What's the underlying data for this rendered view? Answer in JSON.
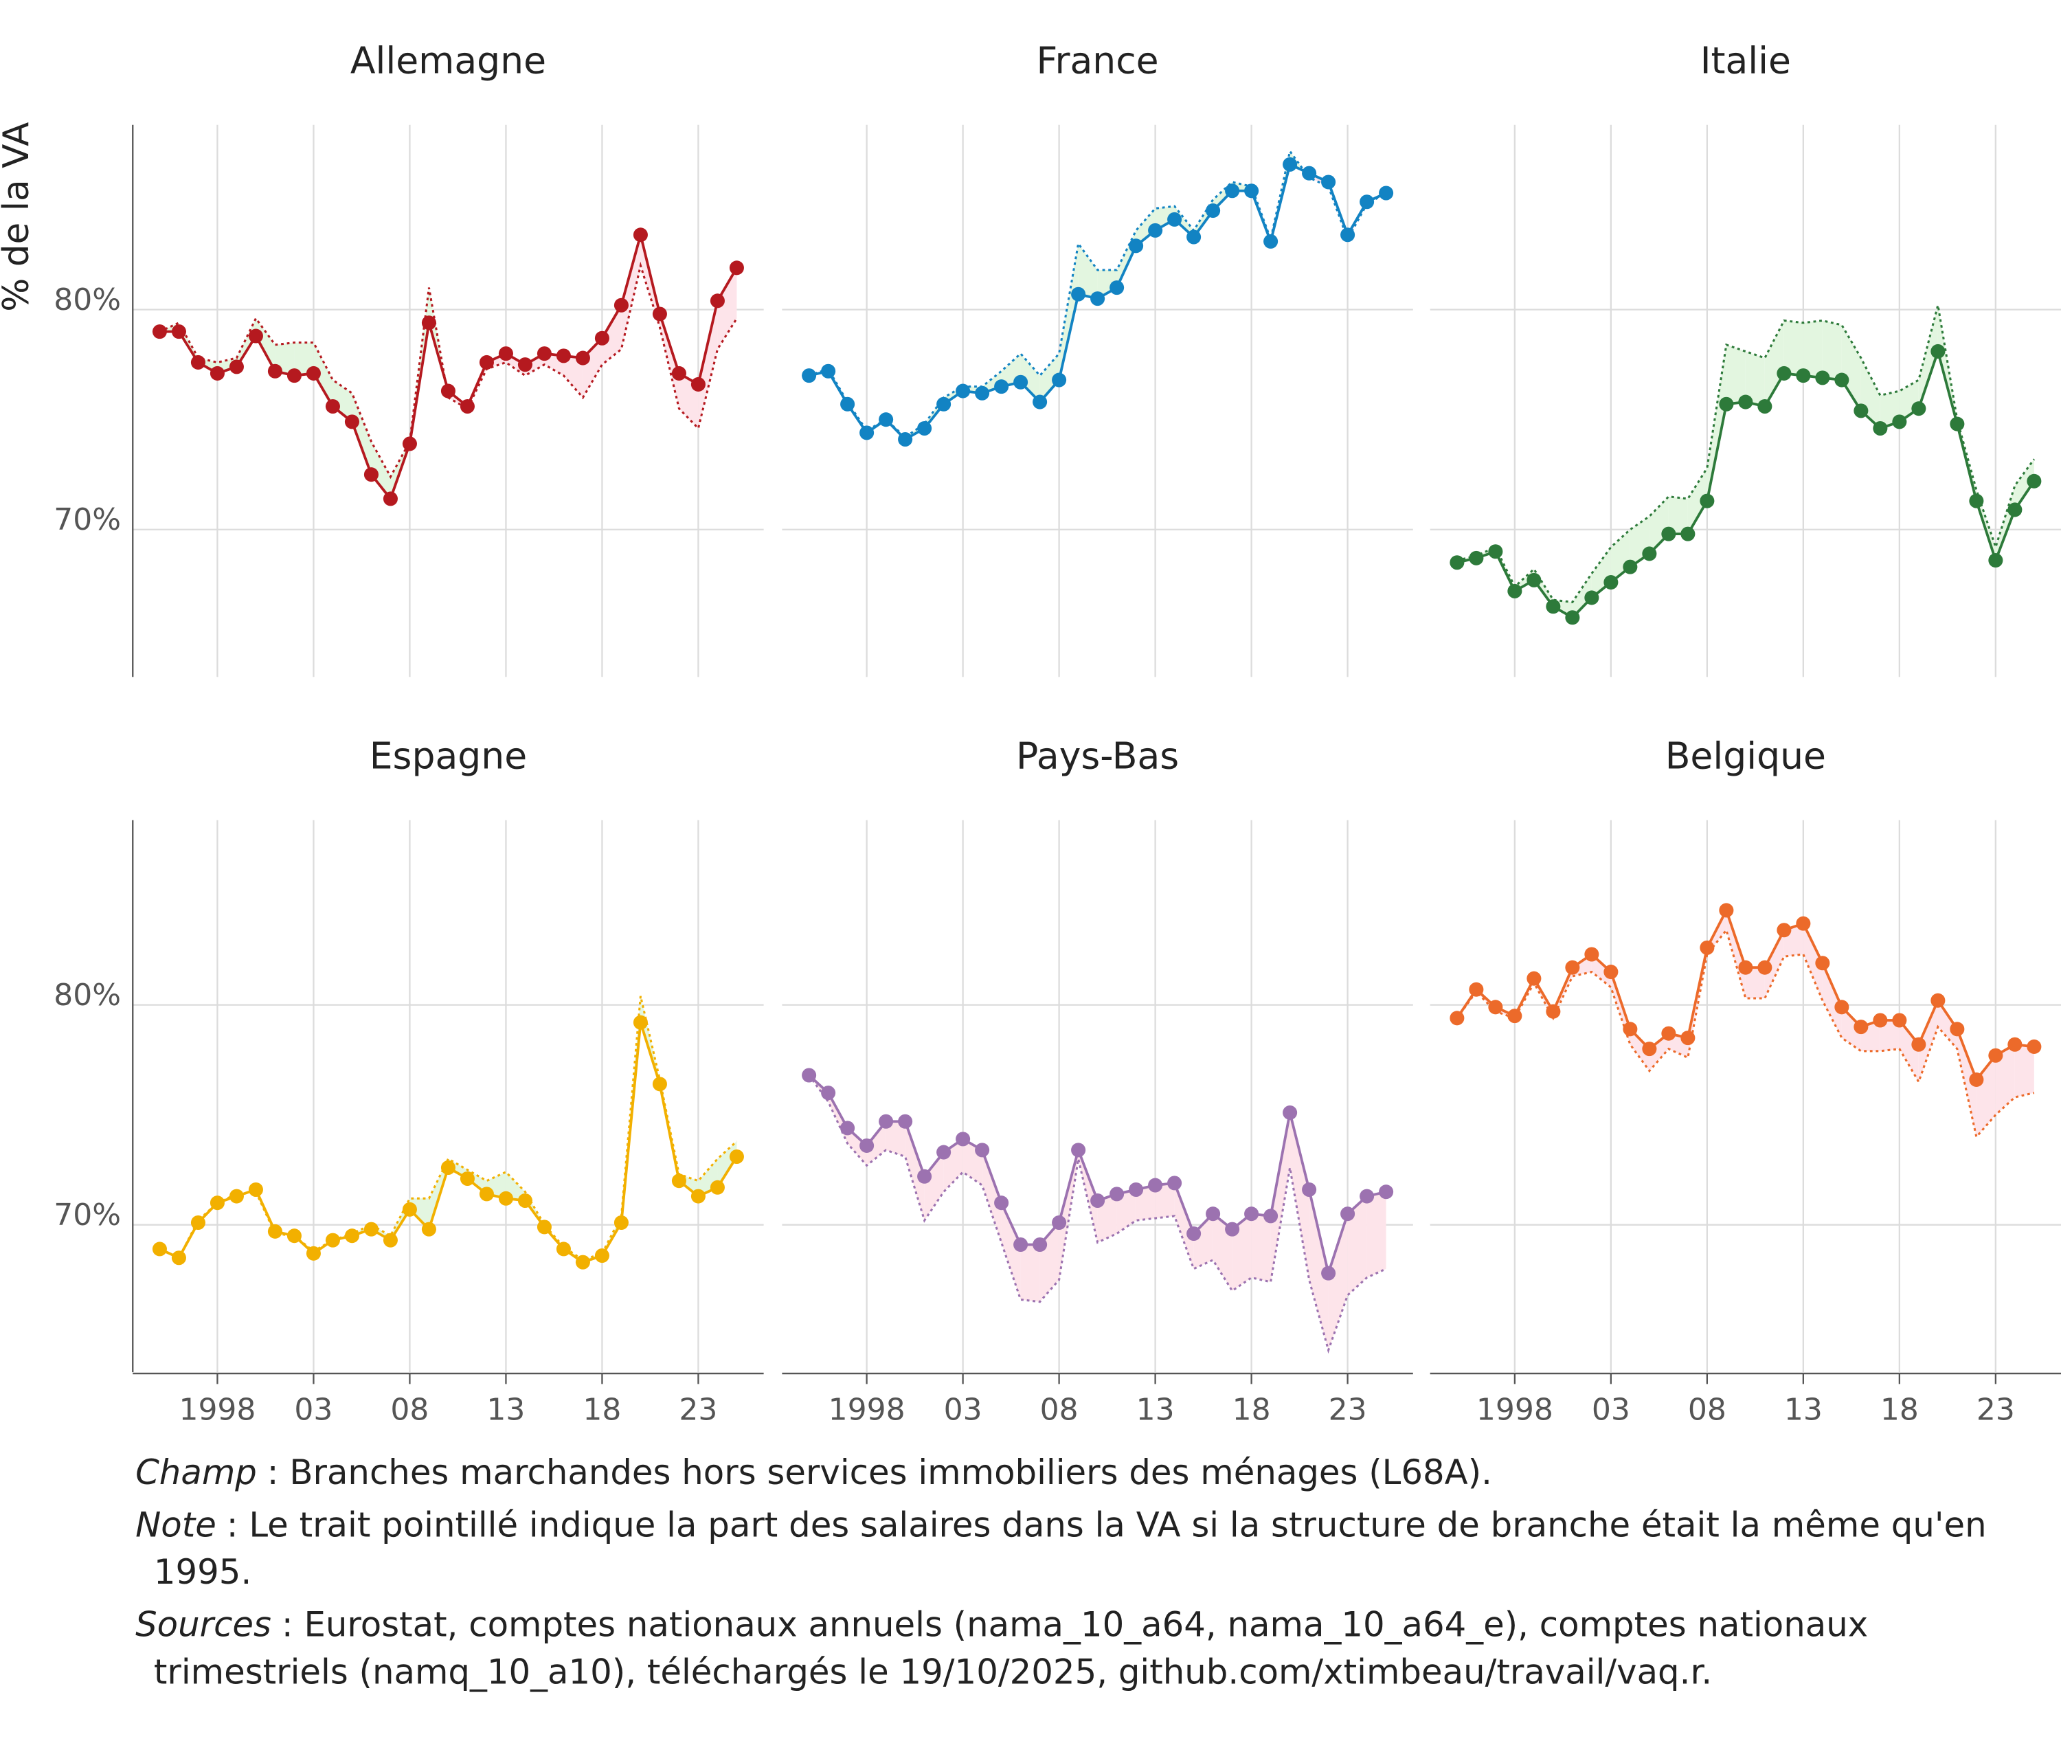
{
  "ylabel": "% de la VA",
  "axes": {
    "xlim": [
      1993.6,
      2026.4
    ],
    "xticks": [
      1998,
      {
        "value": 2003,
        "label": "03"
      },
      {
        "value": 2008,
        "label": "08"
      },
      {
        "value": 2013,
        "label": "13"
      },
      {
        "value": 2018,
        "label": "18"
      },
      {
        "value": 2023,
        "label": "23"
      }
    ],
    "ylim": [
      63.3,
      88.4
    ],
    "yticks": [
      {
        "value": 70,
        "label": "70%"
      },
      {
        "value": 80,
        "label": "80%"
      }
    ]
  },
  "chart_data": [
    {
      "type": "line",
      "title": "Allemagne",
      "x": [
        1995,
        1996,
        1997,
        1998,
        1999,
        2000,
        2001,
        2002,
        2003,
        2004,
        2005,
        2006,
        2007,
        2008,
        2009,
        2010,
        2011,
        2012,
        2013,
        2014,
        2015,
        2016,
        2017,
        2018,
        2019,
        2020,
        2021,
        2022,
        2023,
        2024,
        2025
      ],
      "series": [
        {
          "color": "#b5191f",
          "style": "solid",
          "values": [
            79.0,
            79.0,
            77.6,
            77.1,
            77.4,
            78.8,
            77.2,
            77.0,
            77.1,
            75.6,
            74.9,
            72.5,
            71.4,
            73.9,
            79.4,
            76.3,
            75.6,
            77.6,
            78.0,
            77.5,
            78.0,
            77.9,
            77.8,
            78.7,
            80.2,
            83.4,
            79.8,
            77.1,
            76.6,
            80.4,
            81.9
          ]
        },
        {
          "color": "#b5191f",
          "style": "dotted",
          "values": [
            79.0,
            79.4,
            77.8,
            77.6,
            77.8,
            79.6,
            78.4,
            78.5,
            78.5,
            76.8,
            76.2,
            74.0,
            72.4,
            74.0,
            81.0,
            76.0,
            75.5,
            77.3,
            77.6,
            77.0,
            77.5,
            77.0,
            76.0,
            77.5,
            78.2,
            82.0,
            79.2,
            75.5,
            74.6,
            78.2,
            79.6
          ]
        }
      ]
    },
    {
      "type": "line",
      "title": "France",
      "x": [
        1995,
        1996,
        1997,
        1998,
        1999,
        2000,
        2001,
        2002,
        2003,
        2004,
        2005,
        2006,
        2007,
        2008,
        2009,
        2010,
        2011,
        2012,
        2013,
        2014,
        2015,
        2016,
        2017,
        2018,
        2019,
        2020,
        2021,
        2022,
        2023,
        2024,
        2025
      ],
      "series": [
        {
          "color": "#1283c3",
          "style": "solid",
          "values": [
            77.0,
            77.2,
            75.7,
            74.4,
            75.0,
            74.1,
            74.6,
            75.7,
            76.3,
            76.2,
            76.5,
            76.7,
            75.8,
            76.8,
            80.7,
            80.5,
            81.0,
            82.9,
            83.6,
            84.1,
            83.3,
            84.5,
            85.4,
            85.4,
            83.1,
            86.6,
            86.2,
            85.8,
            83.4,
            84.9,
            85.3
          ]
        },
        {
          "color": "#1283c3",
          "style": "dotted",
          "values": [
            77.0,
            77.3,
            75.8,
            74.5,
            75.0,
            74.2,
            74.8,
            76.0,
            76.5,
            76.5,
            77.2,
            78.0,
            77.0,
            78.0,
            83.0,
            81.8,
            81.8,
            83.6,
            84.6,
            84.7,
            83.6,
            85.0,
            85.8,
            85.6,
            83.2,
            87.2,
            86.0,
            85.6,
            83.2,
            84.8,
            85.3
          ]
        }
      ]
    },
    {
      "type": "line",
      "title": "Italie",
      "x": [
        1995,
        1996,
        1997,
        1998,
        1999,
        2000,
        2001,
        2002,
        2003,
        2004,
        2005,
        2006,
        2007,
        2008,
        2009,
        2010,
        2011,
        2012,
        2013,
        2014,
        2015,
        2016,
        2017,
        2018,
        2019,
        2020,
        2021,
        2022,
        2023,
        2024,
        2025
      ],
      "series": [
        {
          "color": "#2d7a3a",
          "style": "solid",
          "values": [
            68.5,
            68.7,
            69.0,
            67.2,
            67.7,
            66.5,
            66.0,
            66.9,
            67.6,
            68.3,
            68.9,
            69.8,
            69.8,
            71.3,
            75.7,
            75.8,
            75.6,
            77.1,
            77.0,
            76.9,
            76.8,
            75.4,
            74.6,
            74.9,
            75.5,
            78.1,
            74.8,
            71.3,
            68.6,
            70.9,
            72.2
          ]
        },
        {
          "color": "#2d7a3a",
          "style": "dotted",
          "values": [
            68.6,
            68.8,
            69.2,
            67.4,
            68.2,
            66.8,
            66.7,
            68.0,
            69.2,
            70.0,
            70.6,
            71.5,
            71.4,
            72.8,
            78.4,
            78.1,
            77.8,
            79.5,
            79.4,
            79.5,
            79.3,
            77.8,
            76.1,
            76.3,
            76.8,
            80.2,
            75.0,
            71.8,
            69.2,
            72.0,
            73.2
          ]
        }
      ]
    },
    {
      "type": "line",
      "title": "Espagne",
      "x": [
        1995,
        1996,
        1997,
        1998,
        1999,
        2000,
        2001,
        2002,
        2003,
        2004,
        2005,
        2006,
        2007,
        2008,
        2009,
        2010,
        2011,
        2012,
        2013,
        2014,
        2015,
        2016,
        2017,
        2018,
        2019,
        2020,
        2021,
        2022,
        2023,
        2024,
        2025
      ],
      "series": [
        {
          "color": "#f2b000",
          "style": "solid",
          "values": [
            68.9,
            68.5,
            70.1,
            71.0,
            71.3,
            71.6,
            69.7,
            69.5,
            68.7,
            69.3,
            69.5,
            69.8,
            69.3,
            70.7,
            69.8,
            72.6,
            72.1,
            71.4,
            71.2,
            71.1,
            69.9,
            68.9,
            68.3,
            68.6,
            70.1,
            79.2,
            76.4,
            72.0,
            71.3,
            71.7,
            73.1
          ]
        },
        {
          "color": "#f2b000",
          "style": "dotted",
          "values": [
            68.9,
            68.5,
            70.2,
            71.0,
            71.4,
            71.5,
            69.6,
            69.5,
            68.8,
            69.3,
            69.6,
            70.0,
            69.5,
            71.2,
            71.2,
            73.0,
            72.5,
            72.0,
            72.4,
            71.5,
            70.0,
            69.0,
            68.4,
            68.7,
            70.4,
            80.4,
            76.6,
            72.3,
            72.0,
            73.0,
            73.8
          ]
        }
      ]
    },
    {
      "type": "line",
      "title": "Pays-Bas",
      "x": [
        1995,
        1996,
        1997,
        1998,
        1999,
        2000,
        2001,
        2002,
        2003,
        2004,
        2005,
        2006,
        2007,
        2008,
        2009,
        2010,
        2011,
        2012,
        2013,
        2014,
        2015,
        2016,
        2017,
        2018,
        2019,
        2020,
        2021,
        2022,
        2023,
        2024,
        2025
      ],
      "series": [
        {
          "color": "#9c72b0",
          "style": "solid",
          "values": [
            76.8,
            76.0,
            74.4,
            73.6,
            74.7,
            74.7,
            72.2,
            73.3,
            73.9,
            73.4,
            71.0,
            69.1,
            69.1,
            70.1,
            73.4,
            71.1,
            71.4,
            71.6,
            71.8,
            71.9,
            69.6,
            70.5,
            69.8,
            70.5,
            70.4,
            75.1,
            71.6,
            67.8,
            70.5,
            71.3,
            71.5
          ]
        },
        {
          "color": "#9c72b0",
          "style": "dotted",
          "values": [
            76.8,
            75.6,
            73.7,
            72.7,
            73.4,
            73.1,
            70.2,
            71.5,
            72.4,
            71.8,
            69.2,
            66.6,
            66.5,
            67.5,
            73.0,
            69.2,
            69.6,
            70.2,
            70.3,
            70.4,
            68.0,
            68.4,
            67.0,
            67.6,
            67.4,
            72.6,
            67.5,
            64.3,
            66.8,
            67.6,
            68.0
          ]
        }
      ]
    },
    {
      "type": "line",
      "title": "Belgique",
      "x": [
        1995,
        1996,
        1997,
        1998,
        1999,
        2000,
        2001,
        2002,
        2003,
        2004,
        2005,
        2006,
        2007,
        2008,
        2009,
        2010,
        2011,
        2012,
        2013,
        2014,
        2015,
        2016,
        2017,
        2018,
        2019,
        2020,
        2021,
        2022,
        2023,
        2024,
        2025
      ],
      "series": [
        {
          "color": "#ec6a2a",
          "style": "solid",
          "values": [
            79.4,
            80.7,
            79.9,
            79.5,
            81.2,
            79.7,
            81.7,
            82.3,
            81.5,
            78.9,
            78.0,
            78.7,
            78.5,
            82.6,
            84.3,
            81.7,
            81.7,
            83.4,
            83.7,
            81.9,
            79.9,
            79.0,
            79.3,
            79.3,
            78.2,
            80.2,
            78.9,
            76.6,
            77.7,
            78.2,
            78.1
          ]
        },
        {
          "color": "#ec6a2a",
          "style": "dotted",
          "values": [
            79.4,
            80.6,
            79.7,
            79.4,
            81.0,
            79.4,
            81.3,
            81.5,
            80.8,
            78.2,
            77.0,
            78.0,
            77.6,
            82.3,
            83.4,
            80.3,
            80.3,
            82.2,
            82.3,
            80.2,
            78.5,
            77.9,
            77.9,
            78.0,
            76.5,
            79.0,
            78.0,
            74.0,
            75.0,
            75.8,
            76.0
          ]
        }
      ]
    }
  ],
  "notes": [
    {
      "label": "Champ",
      "text": ": Branches marchandes hors services immobiliers des ménages (L68A)."
    },
    {
      "label": "Note",
      "text": ": Le trait pointillé indique la part des salaires dans la VA si la structure de branche était la même qu'en 1995."
    },
    {
      "label": "Sources",
      "text": ": Eurostat, comptes nationaux annuels (nama_10_a64, nama_10_a64_e), comptes nationaux trimestriels (namq_10_a10), téléchargés le 19/10/2025, github.com/xtimbeau/travail/vaq.r."
    }
  ]
}
